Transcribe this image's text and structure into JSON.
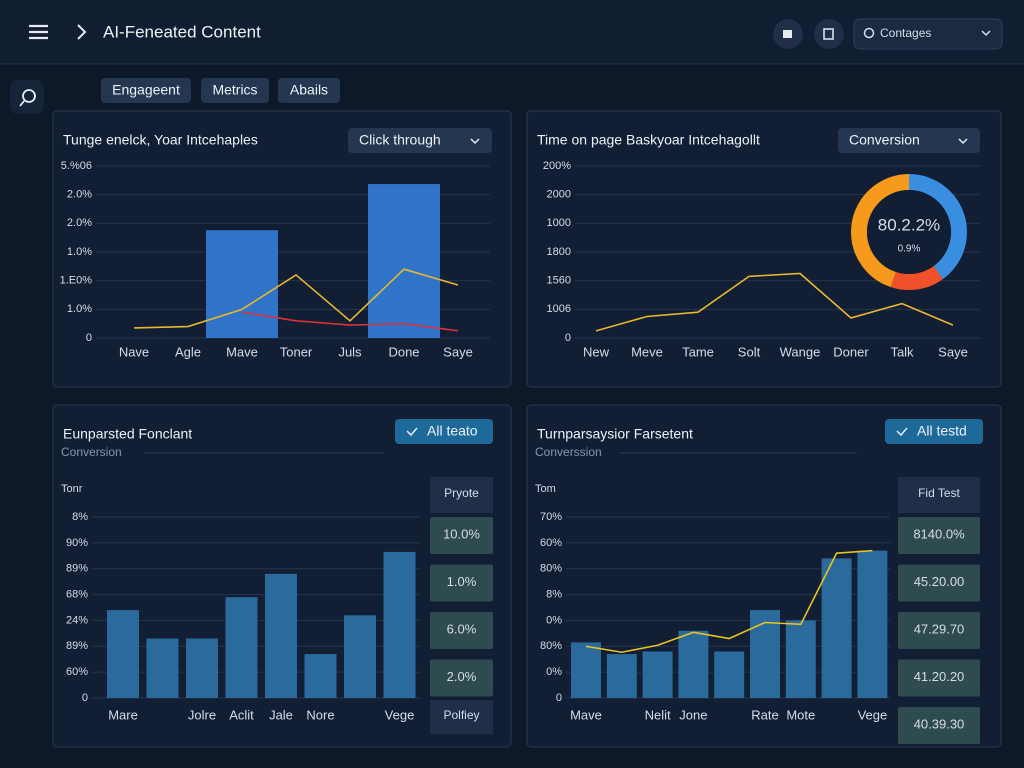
{
  "header": {
    "title": "AI-Feneated Content",
    "search": "Contages"
  },
  "tabs": [
    "Engageent",
    "Metrics",
    "Abails"
  ],
  "panels": [
    {
      "type": "bar",
      "title": "Tunge enelck, Yoar Intcehaples",
      "dropdown": "Click through",
      "categories": [
        "Nave",
        "Agle",
        "Mave",
        "Toner",
        "Juls",
        "Done",
        "Saye"
      ],
      "bars": {
        "color": "#2f74c8",
        "values": [
          null,
          null,
          3.76,
          null,
          null,
          5.37,
          null
        ]
      },
      "lines": [
        {
          "color": "#e8b730",
          "values": [
            0.35,
            0.4,
            1.0,
            2.2,
            0.6,
            2.4,
            1.85
          ]
        },
        {
          "color": "#d8323c",
          "values": [
            null,
            null,
            0.9,
            0.6,
            0.45,
            0.5,
            0.25
          ]
        }
      ],
      "ylim": [
        0,
        6
      ],
      "yticks": [
        {
          "value": 0,
          "label": "0"
        },
        {
          "value": 1,
          "label": "1.0%"
        },
        {
          "value": 2,
          "label": "1.E0%"
        },
        {
          "value": 3,
          "label": "1.0%"
        },
        {
          "value": 4,
          "label": "2.0%"
        },
        {
          "value": 5,
          "label": "2.0%"
        },
        {
          "value": 6,
          "label": "5.%06"
        }
      ]
    },
    {
      "type": "line",
      "title": "Time on page Baskyoar Intcehagollt",
      "dropdown": "Conversion",
      "categories": [
        "New",
        "Meve",
        "Tame",
        "Solt",
        "Wange",
        "Doner",
        "Talk",
        "Saye"
      ],
      "lines": [
        {
          "color": "#e8b730",
          "values": [
            0.25,
            0.75,
            0.9,
            2.15,
            2.25,
            0.7,
            1.2,
            0.45
          ]
        }
      ],
      "ylim": [
        0,
        6
      ],
      "yticks": [
        {
          "value": 0,
          "label": "0"
        },
        {
          "value": 1,
          "label": "1006"
        },
        {
          "value": 2,
          "label": "1560"
        },
        {
          "value": 3,
          "label": "1800"
        },
        {
          "value": 4,
          "label": "1000"
        },
        {
          "value": 5,
          "label": "2000"
        },
        {
          "value": 6,
          "label": "200%"
        }
      ],
      "donut": {
        "label": "80.2.2%",
        "sublabel": "0.9%",
        "values": [
          40,
          15,
          45
        ],
        "colors": [
          "#3a8ee0",
          "#f0502a",
          "#f59a1c"
        ]
      }
    },
    {
      "type": "bar",
      "title": "Eunparsted Fonclant",
      "subtitle": "Conversion",
      "dropdown": "All teato",
      "ylabel": "Tonr",
      "categories": [
        "Mare",
        null,
        "Jolre",
        "Aclit",
        "Jale",
        "Nore",
        null,
        "Vege"
      ],
      "bars": {
        "color": "#2a6a9c",
        "values": [
          3.4,
          2.3,
          2.3,
          3.9,
          4.8,
          1.7,
          3.2,
          5.65
        ]
      },
      "lines": [],
      "ylim": [
        0,
        7
      ],
      "yticks": [
        {
          "value": 0,
          "label": "0"
        },
        {
          "value": 1,
          "label": "60%"
        },
        {
          "value": 2,
          "label": "89%"
        },
        {
          "value": 3,
          "label": "24%"
        },
        {
          "value": 4,
          "label": "68%"
        },
        {
          "value": 5,
          "label": "89%"
        },
        {
          "value": 6,
          "label": "90%"
        },
        {
          "value": 7,
          "label": "8%"
        }
      ],
      "table": {
        "header": "Pryote",
        "cells": [
          "10.0%",
          "1.0%",
          "6.0%",
          "2.0%"
        ],
        "footer": "Polfiey"
      }
    },
    {
      "type": "bar",
      "title": "Turnparsaysior Farsetent",
      "subtitle": "Converssion",
      "dropdown": "All testd",
      "ylabel": "Tom",
      "categories": [
        "Mave",
        null,
        "Nelit",
        "Jone",
        null,
        "Rate",
        "Mote",
        null,
        "Vege"
      ],
      "bars": {
        "color": "#2a6a9c",
        "values": [
          2.15,
          1.7,
          1.8,
          2.6,
          1.8,
          3.4,
          3.0,
          5.4,
          5.7
        ]
      },
      "lines": [
        {
          "color": "#e8c320",
          "values": [
            2.0,
            1.77,
            2.04,
            2.54,
            2.3,
            2.92,
            2.85,
            5.6,
            5.7
          ]
        }
      ],
      "ylim": [
        0,
        7
      ],
      "yticks": [
        {
          "value": 0,
          "label": "0"
        },
        {
          "value": 1,
          "label": "0%"
        },
        {
          "value": 2,
          "label": "80%"
        },
        {
          "value": 3,
          "label": "0%"
        },
        {
          "value": 4,
          "label": "8%"
        },
        {
          "value": 5,
          "label": "80%"
        },
        {
          "value": 6,
          "label": "60%"
        },
        {
          "value": 7,
          "label": "70%"
        }
      ],
      "table": {
        "header": "Fid Test",
        "cells": [
          "8140.0%",
          "45.20.00",
          "47.29.70",
          "41.20.20",
          "40.39.30"
        ]
      }
    }
  ]
}
